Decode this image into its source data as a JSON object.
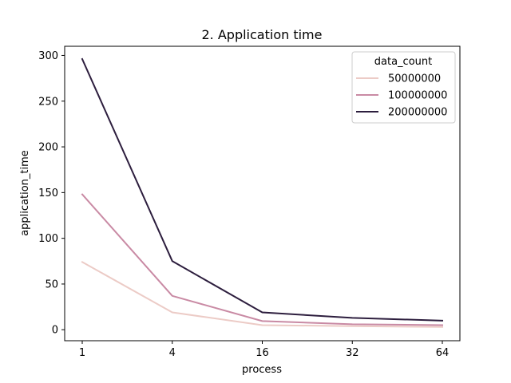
{
  "chart_data": {
    "type": "line",
    "title": "2. Application time",
    "xlabel": "process",
    "ylabel": "application_time",
    "x": [
      "1",
      "4",
      "16",
      "32",
      "64"
    ],
    "yticks": [
      0,
      50,
      100,
      150,
      200,
      250,
      300
    ],
    "ylim": [
      -12,
      310
    ],
    "grid": false,
    "legend": {
      "title": "data_count",
      "placement": "top-right"
    },
    "series": [
      {
        "name": "50000000",
        "color": "#eccbc6",
        "values": [
          74,
          19,
          5,
          4,
          3
        ]
      },
      {
        "name": "100000000",
        "color": "#c98aa4",
        "values": [
          148,
          37,
          9.5,
          6,
          5
        ]
      },
      {
        "name": "200000000",
        "color": "#2d1e3e",
        "values": [
          296,
          75,
          19,
          13,
          10
        ]
      }
    ]
  }
}
